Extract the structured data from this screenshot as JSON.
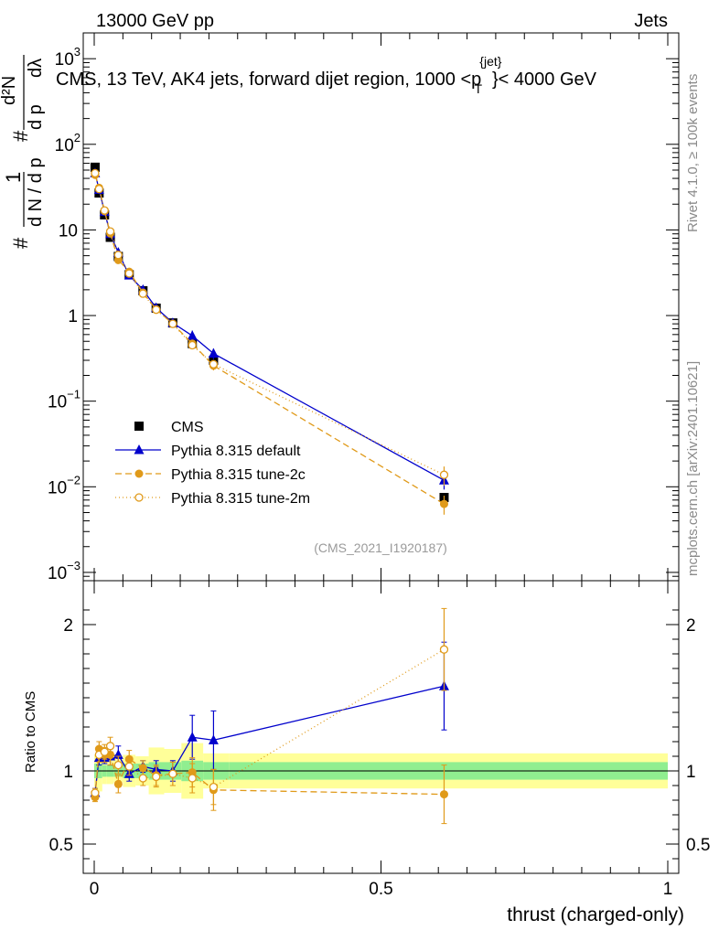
{
  "header": {
    "left": "13000 GeV pp",
    "right": "Jets"
  },
  "side_text": {
    "rivet": "Rivet 4.1.0, ≥ 100k events",
    "site": "mcplots.cern.ch [arXiv:2401.10621]"
  },
  "chart_data": {
    "type": "line",
    "title": "CMS, 13 TeV, AK4 jets, forward dijet region, 1000 <p_T^{jet}< 4000 GeV",
    "title_parts": {
      "a": "CMS, 13 TeV, AK4 jets, forward dijet region, 1000 <p",
      "sup": "{jet}",
      "sub": "T",
      "b": "}< 4000 GeV"
    },
    "ylabel_upper": "1/(dN/dp_T) d²N/(dp_T dλ)",
    "ylabel_parts": {
      "hash": "#",
      "one": "1",
      "frac_den": "d N / d p",
      "num_d2n": "d²N",
      "den_dpt": "d p",
      "den_dl": "dλ",
      "sub_t": "T"
    },
    "ylabel_ratio": "Ratio to CMS",
    "xlabel": "thrust (charged-only)",
    "x_ticks": [
      "0",
      "0.5",
      "1"
    ],
    "ylim_upper": [
      0.0008,
      2000
    ],
    "y_ticks_upper": [
      {
        "v": 0.001,
        "base": "10",
        "exp": "−3"
      },
      {
        "v": 0.01,
        "base": "10",
        "exp": "−2"
      },
      {
        "v": 0.1,
        "base": "10",
        "exp": "−1"
      },
      {
        "v": 1,
        "base": "1",
        "exp": ""
      },
      {
        "v": 10,
        "base": "10",
        "exp": ""
      },
      {
        "v": 100,
        "base": "10",
        "exp": "2"
      },
      {
        "v": 1000,
        "base": "10",
        "exp": "3"
      }
    ],
    "ylim_ratio": [
      0.3,
      2.3
    ],
    "y_ticks_ratio": [
      "0.5",
      "1",
      "2"
    ],
    "analysis_id": "(CMS_2021_I1920187)",
    "bins": [
      {
        "x": 0.0015,
        "lo": 0.0,
        "hi": 0.003
      },
      {
        "x": 0.0085,
        "lo": 0.003,
        "hi": 0.014
      },
      {
        "x": 0.018,
        "lo": 0.014,
        "hi": 0.022
      },
      {
        "x": 0.028,
        "lo": 0.022,
        "hi": 0.034
      },
      {
        "x": 0.042,
        "lo": 0.034,
        "hi": 0.05
      },
      {
        "x": 0.061,
        "lo": 0.05,
        "hi": 0.072
      },
      {
        "x": 0.085,
        "lo": 0.072,
        "hi": 0.095
      },
      {
        "x": 0.108,
        "lo": 0.095,
        "hi": 0.122
      },
      {
        "x": 0.137,
        "lo": 0.122,
        "hi": 0.152
      },
      {
        "x": 0.171,
        "lo": 0.152,
        "hi": 0.19
      },
      {
        "x": 0.208,
        "lo": 0.19,
        "hi": 0.235
      },
      {
        "x": 0.61,
        "lo": 0.235,
        "hi": 1.0
      }
    ],
    "band_inner": [
      0.05,
      0.05,
      0.04,
      0.04,
      0.04,
      0.05,
      0.05,
      0.06,
      0.06,
      0.07,
      0.06,
      0.06
    ],
    "band_outer": [
      0.11,
      0.14,
      0.09,
      0.09,
      0.08,
      0.11,
      0.1,
      0.16,
      0.15,
      0.19,
      0.12,
      0.12
    ],
    "series": [
      {
        "name": "CMS",
        "color": "#000000",
        "marker": "square",
        "dash": "",
        "values": [
          54,
          27,
          15,
          8.2,
          4.9,
          3.0,
          1.95,
          1.22,
          0.82,
          0.47,
          0.3,
          0.0075
        ],
        "errors": [
          0,
          0,
          0,
          0,
          0,
          0,
          0,
          0,
          0,
          0,
          0,
          0
        ],
        "ratio": [
          1,
          1,
          1,
          1,
          1,
          1,
          1,
          1,
          1,
          1,
          1,
          1
        ],
        "ratio_err": [
          0,
          0,
          0,
          0,
          0,
          0,
          0,
          0,
          0,
          0,
          0,
          0
        ]
      },
      {
        "name": "Pythia 8.315 default",
        "color": "#0000cc",
        "marker": "triangle",
        "dash": "",
        "values": [
          46,
          29.5,
          16.3,
          9.0,
          5.45,
          2.95,
          2.0,
          1.23,
          0.82,
          0.58,
          0.36,
          0.0119
        ],
        "errors": [
          0.02,
          0.05,
          0.05,
          0.04,
          0.05,
          0.05,
          0.04,
          0.06,
          0.07,
          0.15,
          0.14,
          0.22
        ],
        "ratio": [
          0.85,
          1.09,
          1.09,
          1.1,
          1.11,
          0.98,
          1.03,
          1.01,
          1.0,
          1.23,
          1.21,
          1.58
        ],
        "ratio_err": [
          0.03,
          0.05,
          0.04,
          0.06,
          0.06,
          0.05,
          0.04,
          0.06,
          0.07,
          0.15,
          0.2,
          0.3
        ]
      },
      {
        "name": "Pythia 8.315 tune-2c",
        "color": "#e09a1a",
        "marker": "circle",
        "dash": "7,4",
        "values": [
          44,
          31,
          16.6,
          9.1,
          4.45,
          3.25,
          1.85,
          1.18,
          0.8,
          0.47,
          0.26,
          0.0063
        ],
        "errors": [
          0.02,
          0.05,
          0.05,
          0.05,
          0.05,
          0.05,
          0.05,
          0.07,
          0.08,
          0.1,
          0.12,
          0.25
        ],
        "ratio": [
          0.82,
          1.15,
          1.11,
          1.11,
          0.91,
          1.08,
          1.02,
          0.97,
          0.98,
          0.99,
          0.87,
          0.84
        ],
        "ratio_err": [
          0.03,
          0.05,
          0.05,
          0.07,
          0.06,
          0.06,
          0.05,
          0.07,
          0.08,
          0.1,
          0.14,
          0.2
        ]
      },
      {
        "name": "Pythia 8.315 tune-2m",
        "color": "#e09a1a",
        "marker": "open-circle",
        "dash": "1,3",
        "values": [
          46,
          30,
          16.9,
          9.6,
          5.1,
          3.1,
          1.8,
          1.17,
          0.8,
          0.45,
          0.27,
          0.0138
        ],
        "errors": [
          0.02,
          0.05,
          0.05,
          0.05,
          0.05,
          0.05,
          0.05,
          0.07,
          0.08,
          0.1,
          0.12,
          0.25
        ],
        "ratio": [
          0.85,
          1.11,
          1.13,
          1.17,
          1.04,
          1.03,
          0.95,
          0.96,
          0.98,
          0.95,
          0.89,
          1.83
        ],
        "ratio_err": [
          0.03,
          0.05,
          0.05,
          0.06,
          0.06,
          0.06,
          0.05,
          0.07,
          0.08,
          0.1,
          0.12,
          0.28
        ]
      }
    ],
    "colors": {
      "band_inner": "#90ee90",
      "band_outer": "#ffff99",
      "ref_line": "#000000"
    }
  }
}
